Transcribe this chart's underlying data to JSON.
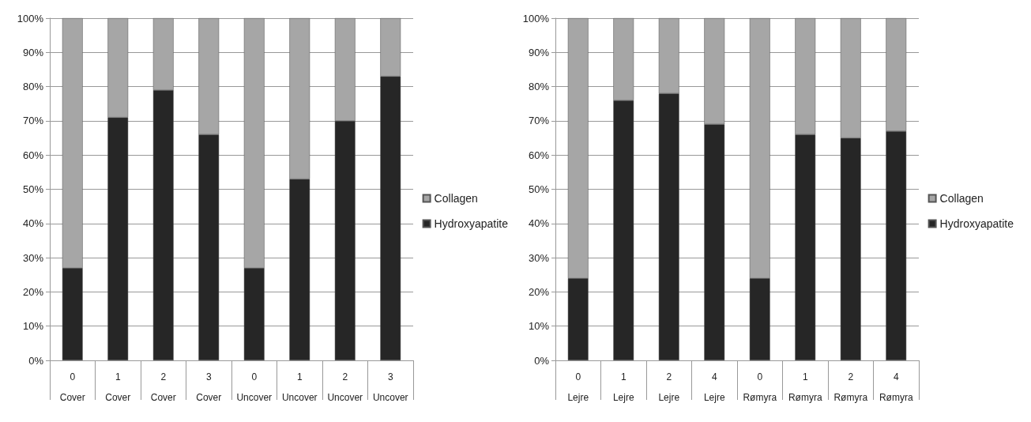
{
  "chart_data": [
    {
      "type": "bar",
      "stacked": true,
      "categories": [
        "0\nCover",
        "1\nCover",
        "2\nCover",
        "3\nCover",
        "0\nUncover",
        "1\nUncover",
        "2\nUncover",
        "3\nUncover"
      ],
      "series": [
        {
          "name": "Hydroxyapatite",
          "color": "#262626",
          "values": [
            27,
            71,
            79,
            66,
            27,
            53,
            70,
            83
          ]
        },
        {
          "name": "Collagen",
          "color": "#a6a6a6",
          "values": [
            73,
            29,
            21,
            34,
            73,
            47,
            30,
            17
          ]
        }
      ],
      "ylim": [
        0,
        100
      ],
      "yticks": [
        {
          "value": 0,
          "label": "0%"
        },
        {
          "value": 10,
          "label": "10%"
        },
        {
          "value": 20,
          "label": "20%"
        },
        {
          "value": 30,
          "label": "30%"
        },
        {
          "value": 40,
          "label": "40%"
        },
        {
          "value": 50,
          "label": "50%"
        },
        {
          "value": 60,
          "label": "60%"
        },
        {
          "value": 70,
          "label": "70%"
        },
        {
          "value": 80,
          "label": "80%"
        },
        {
          "value": 90,
          "label": "90%"
        },
        {
          "value": 100,
          "label": "100%"
        }
      ],
      "grid": "y",
      "legend": "right"
    },
    {
      "type": "bar",
      "stacked": true,
      "categories": [
        "0\nLejre",
        "1\nLejre",
        "2\nLejre",
        "4\nLejre",
        "0\nRømyra",
        "1\nRømyra",
        "2\nRømyra",
        "4\nRømyra"
      ],
      "series": [
        {
          "name": "Hydroxyapatite",
          "color": "#262626",
          "values": [
            24,
            76,
            78,
            69,
            24,
            66,
            65,
            67
          ]
        },
        {
          "name": "Collagen",
          "color": "#a6a6a6",
          "values": [
            76,
            24,
            22,
            31,
            76,
            34,
            35,
            33
          ]
        }
      ],
      "ylim": [
        0,
        100
      ],
      "yticks": [
        {
          "value": 0,
          "label": "0%"
        },
        {
          "value": 10,
          "label": "10%"
        },
        {
          "value": 20,
          "label": "20%"
        },
        {
          "value": 30,
          "label": "30%"
        },
        {
          "value": 40,
          "label": "40%"
        },
        {
          "value": 50,
          "label": "50%"
        },
        {
          "value": 60,
          "label": "60%"
        },
        {
          "value": 70,
          "label": "70%"
        },
        {
          "value": 80,
          "label": "80%"
        },
        {
          "value": 90,
          "label": "90%"
        },
        {
          "value": 100,
          "label": "100%"
        }
      ],
      "grid": "y",
      "legend": "right"
    }
  ]
}
